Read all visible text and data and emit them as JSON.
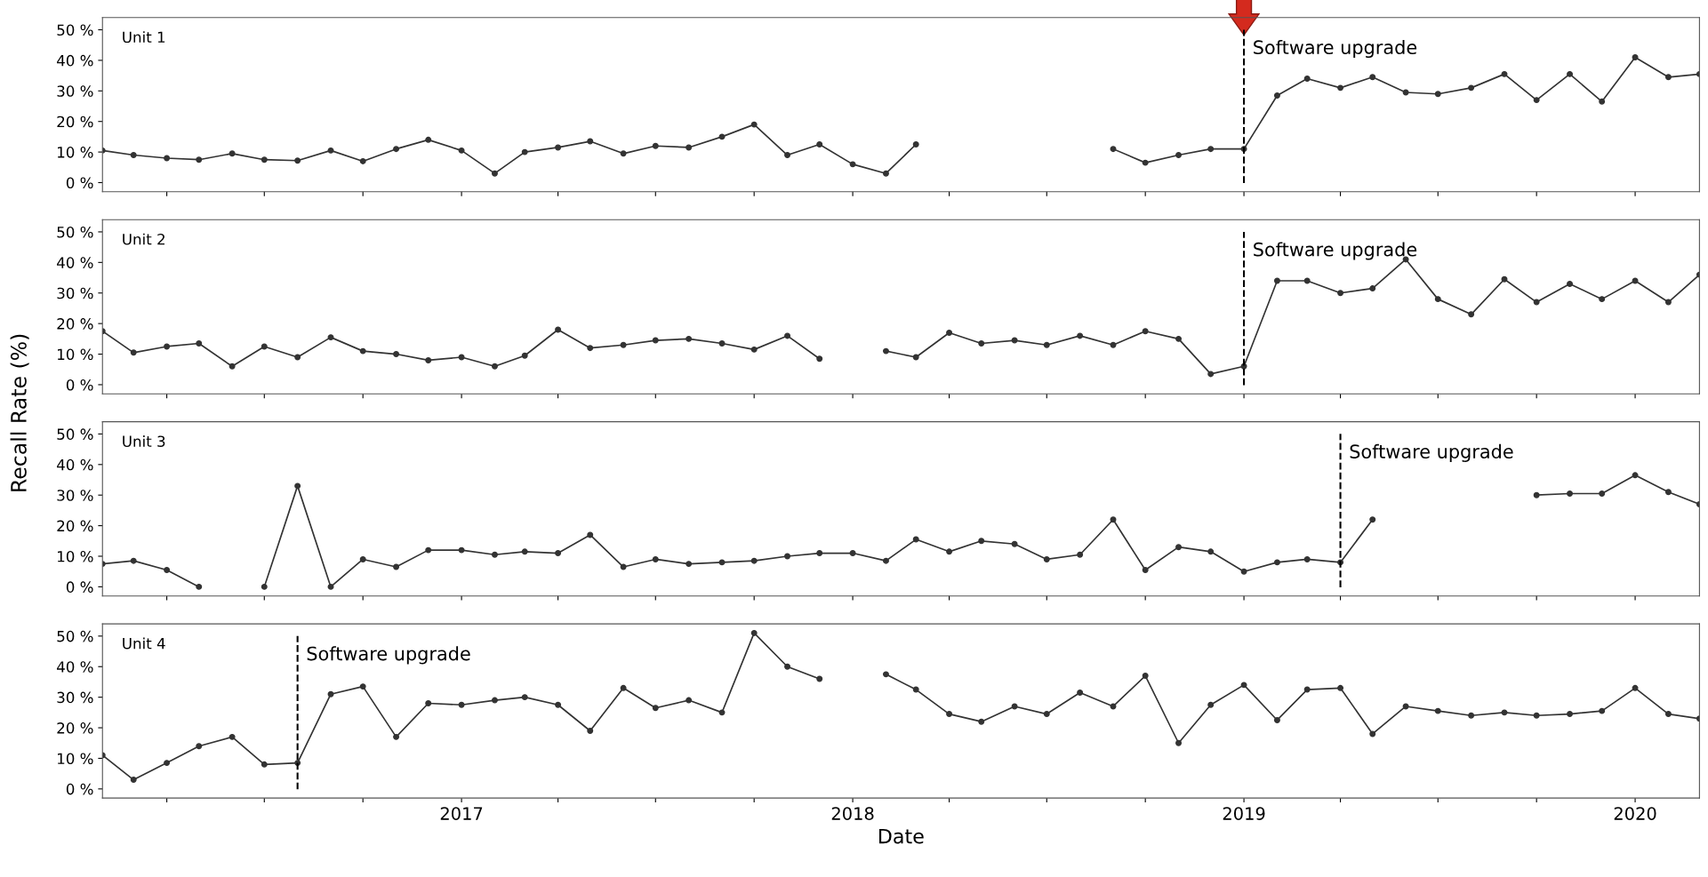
{
  "chart_data": [
    {
      "type": "line",
      "title": "Unit 1",
      "x": [
        "2016-02",
        "2016-03",
        "2016-04",
        "2016-05",
        "2016-06",
        "2016-07",
        "2016-08",
        "2016-09",
        "2016-10",
        "2016-11",
        "2016-12",
        "2017-01",
        "2017-02",
        "2017-03",
        "2017-04",
        "2017-05",
        "2017-06",
        "2017-07",
        "2017-08",
        "2017-09",
        "2017-10",
        "2017-11",
        "2017-12",
        "2018-01",
        "2018-02",
        "2018-03",
        "2018-04",
        "2018-05",
        "2018-06",
        "2018-07",
        "2018-08",
        "2018-09",
        "2018-10",
        "2018-11",
        "2018-12",
        "2019-01",
        "2019-02",
        "2019-03",
        "2019-04",
        "2019-05",
        "2019-06",
        "2019-07",
        "2019-08",
        "2019-09",
        "2019-10",
        "2019-11",
        "2019-12",
        "2020-01",
        "2020-02",
        "2020-03"
      ],
      "series": [
        {
          "color": "#333333",
          "values": [
            10.5,
            9,
            8,
            7.5,
            9.5,
            7.5,
            7.2,
            10.5,
            7,
            11,
            14,
            10.5,
            3,
            10,
            11.5,
            13.5,
            9.5,
            12,
            11.5,
            15,
            19,
            9,
            12.5,
            6,
            3,
            12.5,
            null,
            null,
            null,
            null,
            null,
            11,
            6.5,
            9,
            11,
            11,
            28.5,
            34,
            31,
            34.5,
            29.5,
            29,
            31,
            35.5,
            27,
            35.5,
            26.5,
            41,
            34.5,
            35.5
          ]
        }
      ],
      "ref_lines": [
        {
          "axis": "x",
          "value": "2019-01",
          "label": "Software upgrade",
          "color": "#000000",
          "line_style": "dashed"
        }
      ],
      "xlim": [
        "2016-02",
        "2020-03"
      ],
      "xticks": [
        {
          "value": "2016-04",
          "label": null
        },
        {
          "value": "2016-07",
          "label": null
        },
        {
          "value": "2016-10",
          "label": null
        },
        {
          "value": "2017-01",
          "label": null
        },
        {
          "value": "2017-04",
          "label": null
        },
        {
          "value": "2017-07",
          "label": null
        },
        {
          "value": "2017-10",
          "label": null
        },
        {
          "value": "2018-01",
          "label": null
        },
        {
          "value": "2018-04",
          "label": null
        },
        {
          "value": "2018-07",
          "label": null
        },
        {
          "value": "2018-10",
          "label": null
        },
        {
          "value": "2019-01",
          "label": null
        },
        {
          "value": "2019-04",
          "label": null
        },
        {
          "value": "2019-07",
          "label": null
        },
        {
          "value": "2019-10",
          "label": null
        },
        {
          "value": "2020-01",
          "label": null
        }
      ],
      "ylim": [
        -3,
        54
      ],
      "yticks": [
        {
          "value": 0,
          "label": "0 %"
        },
        {
          "value": 10,
          "label": "10 %"
        },
        {
          "value": 20,
          "label": "20 %"
        },
        {
          "value": 30,
          "label": "30 %"
        },
        {
          "value": 40,
          "label": "40 %"
        },
        {
          "value": 50,
          "label": "50 %"
        }
      ],
      "tick_labels": "y",
      "grid": false,
      "legend": false,
      "marker": "circle",
      "line_style": "solid"
    },
    {
      "type": "line",
      "title": "Unit 2",
      "x": [
        "2016-02",
        "2016-03",
        "2016-04",
        "2016-05",
        "2016-06",
        "2016-07",
        "2016-08",
        "2016-09",
        "2016-10",
        "2016-11",
        "2016-12",
        "2017-01",
        "2017-02",
        "2017-03",
        "2017-04",
        "2017-05",
        "2017-06",
        "2017-07",
        "2017-08",
        "2017-09",
        "2017-10",
        "2017-11",
        "2017-12",
        "2018-01",
        "2018-02",
        "2018-03",
        "2018-04",
        "2018-05",
        "2018-06",
        "2018-07",
        "2018-08",
        "2018-09",
        "2018-10",
        "2018-11",
        "2018-12",
        "2019-01",
        "2019-02",
        "2019-03",
        "2019-04",
        "2019-05",
        "2019-06",
        "2019-07",
        "2019-08",
        "2019-09",
        "2019-10",
        "2019-11",
        "2019-12",
        "2020-01",
        "2020-02",
        "2020-03"
      ],
      "series": [
        {
          "color": "#333333",
          "values": [
            17.5,
            10.5,
            12.5,
            13.5,
            6,
            12.5,
            9,
            15.5,
            11,
            10,
            8,
            9,
            6,
            9.5,
            18,
            12,
            13,
            14.5,
            15,
            13.5,
            11.5,
            16,
            8.5,
            null,
            11,
            9,
            17,
            13.5,
            14.5,
            13,
            16,
            13,
            17.5,
            15,
            3.5,
            6,
            34,
            34,
            30,
            31.5,
            41,
            28,
            23,
            34.5,
            27,
            33,
            28,
            34,
            27,
            36
          ]
        }
      ],
      "ref_lines": [
        {
          "axis": "x",
          "value": "2019-01",
          "label": "Software upgrade",
          "color": "#000000",
          "line_style": "dashed"
        }
      ],
      "xlim": [
        "2016-02",
        "2020-03"
      ],
      "xticks": [
        {
          "value": "2016-04",
          "label": null
        },
        {
          "value": "2016-07",
          "label": null
        },
        {
          "value": "2016-10",
          "label": null
        },
        {
          "value": "2017-01",
          "label": null
        },
        {
          "value": "2017-04",
          "label": null
        },
        {
          "value": "2017-07",
          "label": null
        },
        {
          "value": "2017-10",
          "label": null
        },
        {
          "value": "2018-01",
          "label": null
        },
        {
          "value": "2018-04",
          "label": null
        },
        {
          "value": "2018-07",
          "label": null
        },
        {
          "value": "2018-10",
          "label": null
        },
        {
          "value": "2019-01",
          "label": null
        },
        {
          "value": "2019-04",
          "label": null
        },
        {
          "value": "2019-07",
          "label": null
        },
        {
          "value": "2019-10",
          "label": null
        },
        {
          "value": "2020-01",
          "label": null
        }
      ],
      "ylim": [
        -3,
        54
      ],
      "yticks": [
        {
          "value": 0,
          "label": "0 %"
        },
        {
          "value": 10,
          "label": "10 %"
        },
        {
          "value": 20,
          "label": "20 %"
        },
        {
          "value": 30,
          "label": "30 %"
        },
        {
          "value": 40,
          "label": "40 %"
        },
        {
          "value": 50,
          "label": "50 %"
        }
      ],
      "tick_labels": "y",
      "grid": false,
      "legend": false,
      "marker": "circle",
      "line_style": "solid"
    },
    {
      "type": "line",
      "title": "Unit 3",
      "ylabel": "Recall Rate (%)",
      "x": [
        "2016-02",
        "2016-03",
        "2016-04",
        "2016-05",
        "2016-06",
        "2016-07",
        "2016-08",
        "2016-09",
        "2016-10",
        "2016-11",
        "2016-12",
        "2017-01",
        "2017-02",
        "2017-03",
        "2017-04",
        "2017-05",
        "2017-06",
        "2017-07",
        "2017-08",
        "2017-09",
        "2017-10",
        "2017-11",
        "2017-12",
        "2018-01",
        "2018-02",
        "2018-03",
        "2018-04",
        "2018-05",
        "2018-06",
        "2018-07",
        "2018-08",
        "2018-09",
        "2018-10",
        "2018-11",
        "2018-12",
        "2019-01",
        "2019-02",
        "2019-03",
        "2019-04",
        "2019-05",
        "2019-06",
        "2019-07",
        "2019-08",
        "2019-09",
        "2019-10",
        "2019-11",
        "2019-12",
        "2020-01",
        "2020-02",
        "2020-03"
      ],
      "series": [
        {
          "color": "#333333",
          "values": [
            7.5,
            8.5,
            5.5,
            0,
            null,
            0,
            33,
            0,
            9,
            6.5,
            12,
            12,
            10.5,
            11.5,
            11,
            17,
            6.5,
            9,
            7.5,
            8,
            8.5,
            10,
            11,
            11,
            8.5,
            15.5,
            11.5,
            15,
            14,
            9,
            10.5,
            22,
            5.5,
            13,
            11.5,
            5,
            8,
            9,
            8,
            22,
            null,
            null,
            null,
            null,
            30,
            30.5,
            30.5,
            36.5,
            31,
            27
          ]
        }
      ],
      "ref_lines": [
        {
          "axis": "x",
          "value": "2019-04",
          "label": "Software upgrade",
          "color": "#000000",
          "line_style": "dashed"
        }
      ],
      "xlim": [
        "2016-02",
        "2020-03"
      ],
      "xticks": [
        {
          "value": "2016-04",
          "label": null
        },
        {
          "value": "2016-07",
          "label": null
        },
        {
          "value": "2016-10",
          "label": null
        },
        {
          "value": "2017-01",
          "label": null
        },
        {
          "value": "2017-04",
          "label": null
        },
        {
          "value": "2017-07",
          "label": null
        },
        {
          "value": "2017-10",
          "label": null
        },
        {
          "value": "2018-01",
          "label": null
        },
        {
          "value": "2018-04",
          "label": null
        },
        {
          "value": "2018-07",
          "label": null
        },
        {
          "value": "2018-10",
          "label": null
        },
        {
          "value": "2019-01",
          "label": null
        },
        {
          "value": "2019-04",
          "label": null
        },
        {
          "value": "2019-07",
          "label": null
        },
        {
          "value": "2019-10",
          "label": null
        },
        {
          "value": "2020-01",
          "label": null
        }
      ],
      "ylim": [
        -3,
        54
      ],
      "yticks": [
        {
          "value": 0,
          "label": "0 %"
        },
        {
          "value": 10,
          "label": "10 %"
        },
        {
          "value": 20,
          "label": "20 %"
        },
        {
          "value": 30,
          "label": "30 %"
        },
        {
          "value": 40,
          "label": "40 %"
        },
        {
          "value": 50,
          "label": "50 %"
        }
      ],
      "tick_labels": "y",
      "grid": false,
      "legend": false,
      "marker": "circle",
      "line_style": "solid"
    },
    {
      "type": "line",
      "title": "Unit 4",
      "xlabel": "Date",
      "x": [
        "2016-02",
        "2016-03",
        "2016-04",
        "2016-05",
        "2016-06",
        "2016-07",
        "2016-08",
        "2016-09",
        "2016-10",
        "2016-11",
        "2016-12",
        "2017-01",
        "2017-02",
        "2017-03",
        "2017-04",
        "2017-05",
        "2017-06",
        "2017-07",
        "2017-08",
        "2017-09",
        "2017-10",
        "2017-11",
        "2017-12",
        "2018-01",
        "2018-02",
        "2018-03",
        "2018-04",
        "2018-05",
        "2018-06",
        "2018-07",
        "2018-08",
        "2018-09",
        "2018-10",
        "2018-11",
        "2018-12",
        "2019-01",
        "2019-02",
        "2019-03",
        "2019-04",
        "2019-05",
        "2019-06",
        "2019-07",
        "2019-08",
        "2019-09",
        "2019-10",
        "2019-11",
        "2019-12",
        "2020-01",
        "2020-02",
        "2020-03"
      ],
      "series": [
        {
          "color": "#333333",
          "values": [
            11,
            3,
            8.5,
            14,
            17,
            8,
            8.5,
            31,
            33.5,
            17,
            28,
            27.5,
            29,
            30,
            27.5,
            19,
            33,
            26.5,
            29,
            25,
            51,
            40,
            36,
            null,
            37.5,
            32.5,
            24.5,
            22,
            27,
            24.5,
            31.5,
            27,
            37,
            15,
            27.5,
            34,
            22.5,
            32.5,
            33,
            18,
            27,
            25.5,
            24,
            25,
            24,
            24.5,
            25.5,
            33,
            24.5,
            23
          ]
        }
      ],
      "ref_lines": [
        {
          "axis": "x",
          "value": "2016-08",
          "label": "Software upgrade",
          "color": "#000000",
          "line_style": "dashed"
        }
      ],
      "xlim": [
        "2016-02",
        "2020-03"
      ],
      "xticks": [
        {
          "value": "2016-04",
          "label": null
        },
        {
          "value": "2016-07",
          "label": null
        },
        {
          "value": "2016-10",
          "label": null
        },
        {
          "value": "2017-01",
          "label": "2017"
        },
        {
          "value": "2017-04",
          "label": null
        },
        {
          "value": "2017-07",
          "label": null
        },
        {
          "value": "2017-10",
          "label": null
        },
        {
          "value": "2018-01",
          "label": "2018"
        },
        {
          "value": "2018-04",
          "label": null
        },
        {
          "value": "2018-07",
          "label": null
        },
        {
          "value": "2018-10",
          "label": null
        },
        {
          "value": "2019-01",
          "label": "2019"
        },
        {
          "value": "2019-04",
          "label": null
        },
        {
          "value": "2019-07",
          "label": null
        },
        {
          "value": "2019-10",
          "label": null
        },
        {
          "value": "2020-01",
          "label": "2020"
        }
      ],
      "ylim": [
        -3,
        54
      ],
      "yticks": [
        {
          "value": 0,
          "label": "0 %"
        },
        {
          "value": 10,
          "label": "10 %"
        },
        {
          "value": 20,
          "label": "20 %"
        },
        {
          "value": 30,
          "label": "30 %"
        },
        {
          "value": 40,
          "label": "40 %"
        },
        {
          "value": 50,
          "label": "50 %"
        }
      ],
      "grid": false,
      "legend": false,
      "marker": "circle",
      "line_style": "solid"
    }
  ]
}
